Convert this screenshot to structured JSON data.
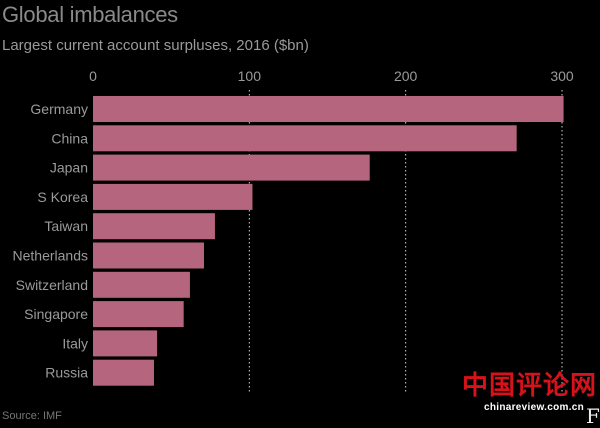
{
  "chart_data": {
    "type": "bar",
    "orientation": "horizontal",
    "title": "Global imbalances",
    "subtitle": "Largest current account surpluses, 2016 ($bn)",
    "source": "Source: IMF",
    "categories": [
      "Germany",
      "China",
      "Japan",
      "S Korea",
      "Taiwan",
      "Netherlands",
      "Switzerland",
      "Singapore",
      "Italy",
      "Russia"
    ],
    "values": [
      301,
      271,
      177,
      102,
      78,
      71,
      62,
      58,
      41,
      39
    ],
    "xlim": [
      0,
      300
    ],
    "xticks": [
      0,
      100,
      200,
      300
    ],
    "grid": true,
    "bar_color": "#b6657f",
    "axis_color": "#9a9a9a"
  },
  "watermark": {
    "logo_text": "中国评论网",
    "url": "chinareview.com.cn"
  },
  "ft_mark": "FT"
}
